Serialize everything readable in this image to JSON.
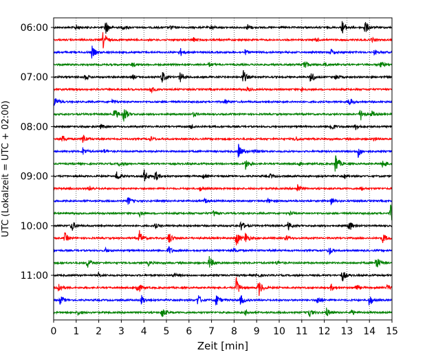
{
  "chart_data": {
    "type": "line",
    "title": "",
    "xlabel": "Zeit  [min]",
    "ylabel": "UTC (Lokalzeit = UTC + 02:00)",
    "xlim": [
      0,
      15
    ],
    "x_ticks": [
      0,
      1,
      2,
      3,
      4,
      5,
      6,
      7,
      8,
      9,
      10,
      11,
      12,
      13,
      14,
      15
    ],
    "y_tick_labels": [
      "06:00",
      "07:00",
      "08:00",
      "09:00",
      "10:00",
      "11:00"
    ],
    "y_tick_rows": [
      0,
      4,
      8,
      12,
      16,
      20
    ],
    "grid": "vertical dotted at each minute",
    "rows_per_hour": 4,
    "minutes_per_row": 15,
    "colors": [
      "#000000",
      "#ff0000",
      "#0000ff",
      "#008000"
    ],
    "series": [
      {
        "start": "06:00",
        "color": "#000000",
        "events": [
          {
            "t": 1.0,
            "a": 0.3
          },
          {
            "t": 2.3,
            "a": 1.0
          },
          {
            "t": 3.1,
            "a": 0.3
          },
          {
            "t": 5.2,
            "a": 0.3
          },
          {
            "t": 7.0,
            "a": 0.3
          },
          {
            "t": 8.6,
            "a": 0.4
          },
          {
            "t": 12.8,
            "a": 0.9
          },
          {
            "t": 13.8,
            "a": 1.0
          }
        ]
      },
      {
        "start": "06:15",
        "color": "#ff0000",
        "events": [
          {
            "t": 2.2,
            "a": 1.2
          },
          {
            "t": 6.2,
            "a": 0.3
          },
          {
            "t": 11.6,
            "a": 0.3
          },
          {
            "t": 14.1,
            "a": 0.3
          }
        ]
      },
      {
        "start": "06:30",
        "color": "#0000ff",
        "events": [
          {
            "t": 1.7,
            "a": 0.8
          },
          {
            "t": 5.6,
            "a": 0.6
          },
          {
            "t": 8.5,
            "a": 0.3
          },
          {
            "t": 12.3,
            "a": 0.4
          },
          {
            "t": 14.2,
            "a": 0.3
          }
        ]
      },
      {
        "start": "06:45",
        "color": "#008000",
        "events": [
          {
            "t": 3.5,
            "a": 0.3
          },
          {
            "t": 6.9,
            "a": 0.3
          },
          {
            "t": 11.1,
            "a": 0.8
          },
          {
            "t": 12.0,
            "a": 0.3
          },
          {
            "t": 14.5,
            "a": 0.4
          }
        ]
      },
      {
        "start": "07:00",
        "color": "#000000",
        "events": [
          {
            "t": 1.4,
            "a": 0.4
          },
          {
            "t": 3.5,
            "a": 0.3
          },
          {
            "t": 4.8,
            "a": 0.9
          },
          {
            "t": 5.6,
            "a": 0.7
          },
          {
            "t": 8.4,
            "a": 1.0
          },
          {
            "t": 11.4,
            "a": 0.9
          },
          {
            "t": 12.5,
            "a": 0.4
          }
        ]
      },
      {
        "start": "07:15",
        "color": "#ff0000",
        "events": [
          {
            "t": 4.3,
            "a": 0.5
          },
          {
            "t": 8.6,
            "a": 0.3
          },
          {
            "t": 11.0,
            "a": 0.3
          }
        ]
      },
      {
        "start": "07:30",
        "color": "#0000ff",
        "events": [
          {
            "t": 0.05,
            "a": 0.7
          },
          {
            "t": 2.6,
            "a": 0.3
          },
          {
            "t": 7.6,
            "a": 0.3
          },
          {
            "t": 13.1,
            "a": 0.6
          }
        ]
      },
      {
        "start": "07:45",
        "color": "#008000",
        "events": [
          {
            "t": 2.7,
            "a": 0.8
          },
          {
            "t": 3.1,
            "a": 1.2
          },
          {
            "t": 6.2,
            "a": 0.3
          },
          {
            "t": 13.6,
            "a": 0.9
          },
          {
            "t": 14.1,
            "a": 0.4
          }
        ]
      },
      {
        "start": "08:00",
        "color": "#000000",
        "events": [
          {
            "t": 2.1,
            "a": 0.3
          },
          {
            "t": 6.1,
            "a": 0.3
          },
          {
            "t": 12.3,
            "a": 0.6
          },
          {
            "t": 13.4,
            "a": 0.4
          }
        ]
      },
      {
        "start": "08:15",
        "color": "#ff0000",
        "events": [
          {
            "t": 0.4,
            "a": 0.5
          },
          {
            "t": 1.3,
            "a": 0.7
          },
          {
            "t": 4.3,
            "a": 0.3
          },
          {
            "t": 10.7,
            "a": 0.4
          },
          {
            "t": 14.2,
            "a": 0.3
          }
        ]
      },
      {
        "start": "08:30",
        "color": "#0000ff",
        "events": [
          {
            "t": 1.3,
            "a": 0.5
          },
          {
            "t": 2.2,
            "a": 0.3
          },
          {
            "t": 8.2,
            "a": 1.0
          },
          {
            "t": 8.9,
            "a": 0.4
          },
          {
            "t": 13.5,
            "a": 0.8
          }
        ]
      },
      {
        "start": "08:45",
        "color": "#008000",
        "events": [
          {
            "t": 2.9,
            "a": 0.3
          },
          {
            "t": 8.5,
            "a": 0.8
          },
          {
            "t": 10.9,
            "a": 0.3
          },
          {
            "t": 12.5,
            "a": 1.5
          },
          {
            "t": 14.6,
            "a": 0.7
          }
        ]
      },
      {
        "start": "09:00",
        "color": "#000000",
        "events": [
          {
            "t": 2.8,
            "a": 0.7
          },
          {
            "t": 4.0,
            "a": 1.0
          },
          {
            "t": 4.5,
            "a": 0.8
          },
          {
            "t": 6.6,
            "a": 0.3
          },
          {
            "t": 9.6,
            "a": 0.3
          },
          {
            "t": 12.9,
            "a": 0.3
          }
        ]
      },
      {
        "start": "09:15",
        "color": "#ff0000",
        "events": [
          {
            "t": 1.6,
            "a": 0.3
          },
          {
            "t": 6.5,
            "a": 0.3
          },
          {
            "t": 10.8,
            "a": 0.7
          },
          {
            "t": 13.6,
            "a": 0.3
          }
        ]
      },
      {
        "start": "09:30",
        "color": "#0000ff",
        "events": [
          {
            "t": 3.3,
            "a": 0.6
          },
          {
            "t": 6.7,
            "a": 0.3
          },
          {
            "t": 9.5,
            "a": 0.3
          },
          {
            "t": 12.3,
            "a": 0.5
          }
        ]
      },
      {
        "start": "09:45",
        "color": "#008000",
        "events": [
          {
            "t": 3.8,
            "a": 0.4
          },
          {
            "t": 7.1,
            "a": 0.4
          },
          {
            "t": 10.5,
            "a": 0.3
          },
          {
            "t": 14.95,
            "a": 1.1
          }
        ]
      },
      {
        "start": "10:00",
        "color": "#000000",
        "events": [
          {
            "t": 0.8,
            "a": 0.8
          },
          {
            "t": 4.5,
            "a": 0.3
          },
          {
            "t": 8.3,
            "a": 0.7
          },
          {
            "t": 10.4,
            "a": 0.5
          },
          {
            "t": 13.1,
            "a": 0.8
          }
        ]
      },
      {
        "start": "10:15",
        "color": "#ff0000",
        "events": [
          {
            "t": 0.5,
            "a": 0.7
          },
          {
            "t": 3.8,
            "a": 1.0
          },
          {
            "t": 5.1,
            "a": 0.9
          },
          {
            "t": 8.1,
            "a": 1.1
          },
          {
            "t": 8.5,
            "a": 0.8
          },
          {
            "t": 10.3,
            "a": 0.4
          },
          {
            "t": 14.6,
            "a": 0.7
          }
        ]
      },
      {
        "start": "10:30",
        "color": "#0000ff",
        "events": [
          {
            "t": 2.3,
            "a": 0.3
          },
          {
            "t": 5.1,
            "a": 0.6
          },
          {
            "t": 8.0,
            "a": 0.3
          },
          {
            "t": 12.2,
            "a": 0.6
          }
        ]
      },
      {
        "start": "10:45",
        "color": "#008000",
        "events": [
          {
            "t": 1.5,
            "a": 0.7
          },
          {
            "t": 4.2,
            "a": 0.3
          },
          {
            "t": 6.9,
            "a": 0.9
          },
          {
            "t": 9.9,
            "a": 0.3
          },
          {
            "t": 14.3,
            "a": 1.0
          }
        ]
      },
      {
        "start": "11:00",
        "color": "#000000",
        "events": [
          {
            "t": 2.0,
            "a": 0.3
          },
          {
            "t": 5.3,
            "a": 0.3
          },
          {
            "t": 9.0,
            "a": 0.3
          },
          {
            "t": 12.8,
            "a": 0.8
          }
        ]
      },
      {
        "start": "11:15",
        "color": "#ff0000",
        "events": [
          {
            "t": 0.2,
            "a": 0.8
          },
          {
            "t": 3.7,
            "a": 0.9
          },
          {
            "t": 8.1,
            "a": 1.3
          },
          {
            "t": 9.1,
            "a": 1.1
          },
          {
            "t": 12.3,
            "a": 0.4
          },
          {
            "t": 13.4,
            "a": 0.5
          },
          {
            "t": 14.8,
            "a": 0.4
          }
        ]
      },
      {
        "start": "11:30",
        "color": "#0000ff",
        "events": [
          {
            "t": 0.3,
            "a": 0.6
          },
          {
            "t": 3.9,
            "a": 0.6
          },
          {
            "t": 6.4,
            "a": 0.8
          },
          {
            "t": 7.2,
            "a": 0.9
          },
          {
            "t": 8.3,
            "a": 0.7
          },
          {
            "t": 11.7,
            "a": 0.6
          },
          {
            "t": 14.0,
            "a": 0.8
          }
        ]
      },
      {
        "start": "11:45",
        "color": "#008000",
        "events": [
          {
            "t": 1.1,
            "a": 0.3
          },
          {
            "t": 4.8,
            "a": 0.8
          },
          {
            "t": 8.5,
            "a": 0.3
          },
          {
            "t": 11.3,
            "a": 0.8
          },
          {
            "t": 12.1,
            "a": 0.6
          },
          {
            "t": 13.2,
            "a": 0.4
          }
        ]
      }
    ]
  }
}
